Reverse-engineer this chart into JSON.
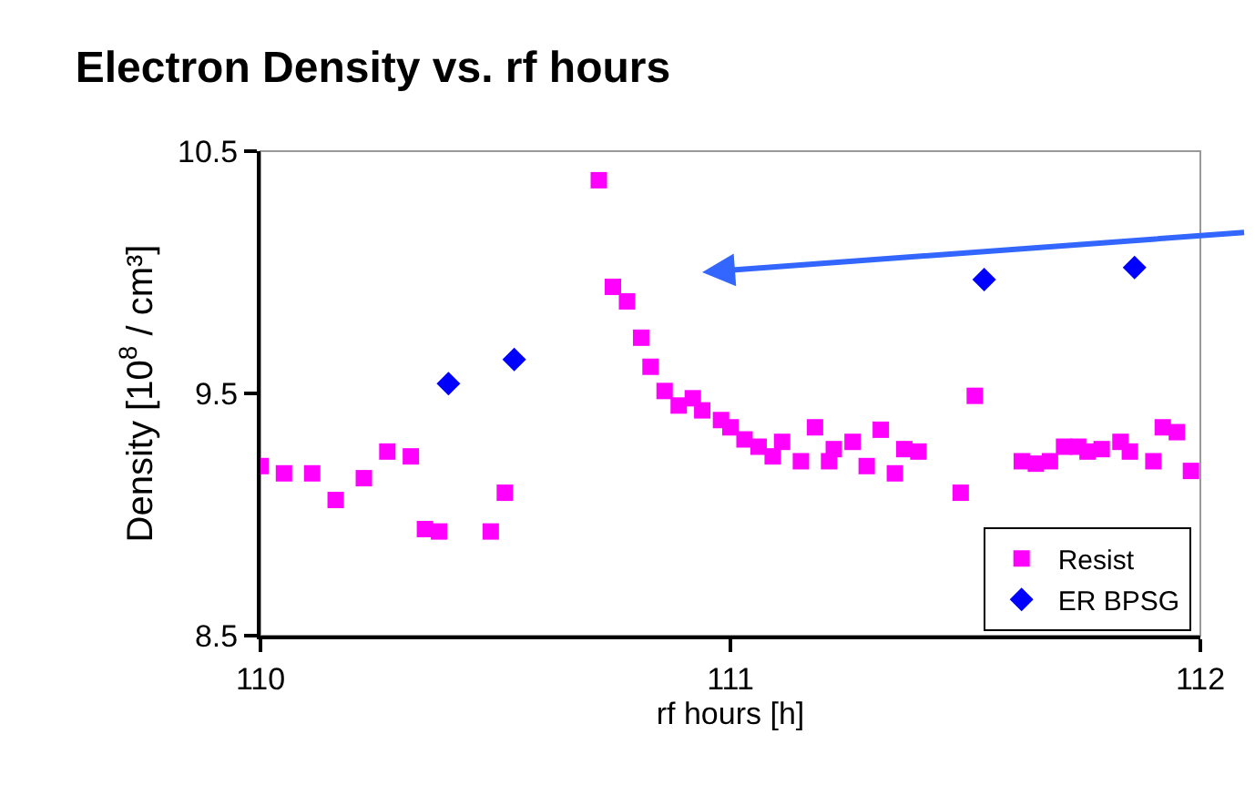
{
  "chart_data": {
    "type": "scatter",
    "title": "Electron Density vs. rf hours",
    "xlabel": "rf hours [h]",
    "ylabel": "Density [10$^{8}$ / cm³]",
    "xlim": [
      110,
      112
    ],
    "xticks": [
      110,
      111,
      112
    ],
    "ylim": [
      8.5,
      10.5
    ],
    "yticks": [
      8.5,
      9.5,
      10.5
    ],
    "grid": false,
    "legend": "bottom right",
    "series": [
      {
        "name": "Resist",
        "color": "#ff00ff",
        "marker": "square",
        "x": [
          110.0,
          110.05,
          110.11,
          110.16,
          110.22,
          110.27,
          110.32,
          110.35,
          110.38,
          110.49,
          110.52,
          110.72,
          110.75,
          110.78,
          110.81,
          110.83,
          110.86,
          110.89,
          110.92,
          110.94,
          110.98,
          111.0,
          111.03,
          111.06,
          111.09,
          111.11,
          111.15,
          111.18,
          111.21,
          111.22,
          111.26,
          111.29,
          111.32,
          111.35,
          111.37,
          111.4,
          111.49,
          111.52,
          111.62,
          111.65,
          111.68,
          111.71,
          111.74,
          111.76,
          111.79,
          111.83,
          111.85,
          111.9,
          111.92,
          111.95,
          111.98
        ],
        "values": [
          9.2,
          9.17,
          9.17,
          9.06,
          9.15,
          9.26,
          9.24,
          8.94,
          8.93,
          8.93,
          9.09,
          10.38,
          9.94,
          9.88,
          9.73,
          9.61,
          9.51,
          9.45,
          9.48,
          9.43,
          9.39,
          9.36,
          9.31,
          9.28,
          9.24,
          9.3,
          9.22,
          9.36,
          9.22,
          9.27,
          9.3,
          9.2,
          9.35,
          9.17,
          9.27,
          9.26,
          9.09,
          9.49,
          9.22,
          9.21,
          9.22,
          9.28,
          9.28,
          9.26,
          9.27,
          9.3,
          9.26,
          9.22,
          9.36,
          9.34,
          9.18
        ]
      },
      {
        "name": "ER BPSG",
        "color": "#0000ff",
        "marker": "diamond",
        "x": [
          110.4,
          110.54,
          111.54,
          111.86
        ],
        "values": [
          9.54,
          9.64,
          9.97,
          10.02
        ]
      }
    ]
  }
}
